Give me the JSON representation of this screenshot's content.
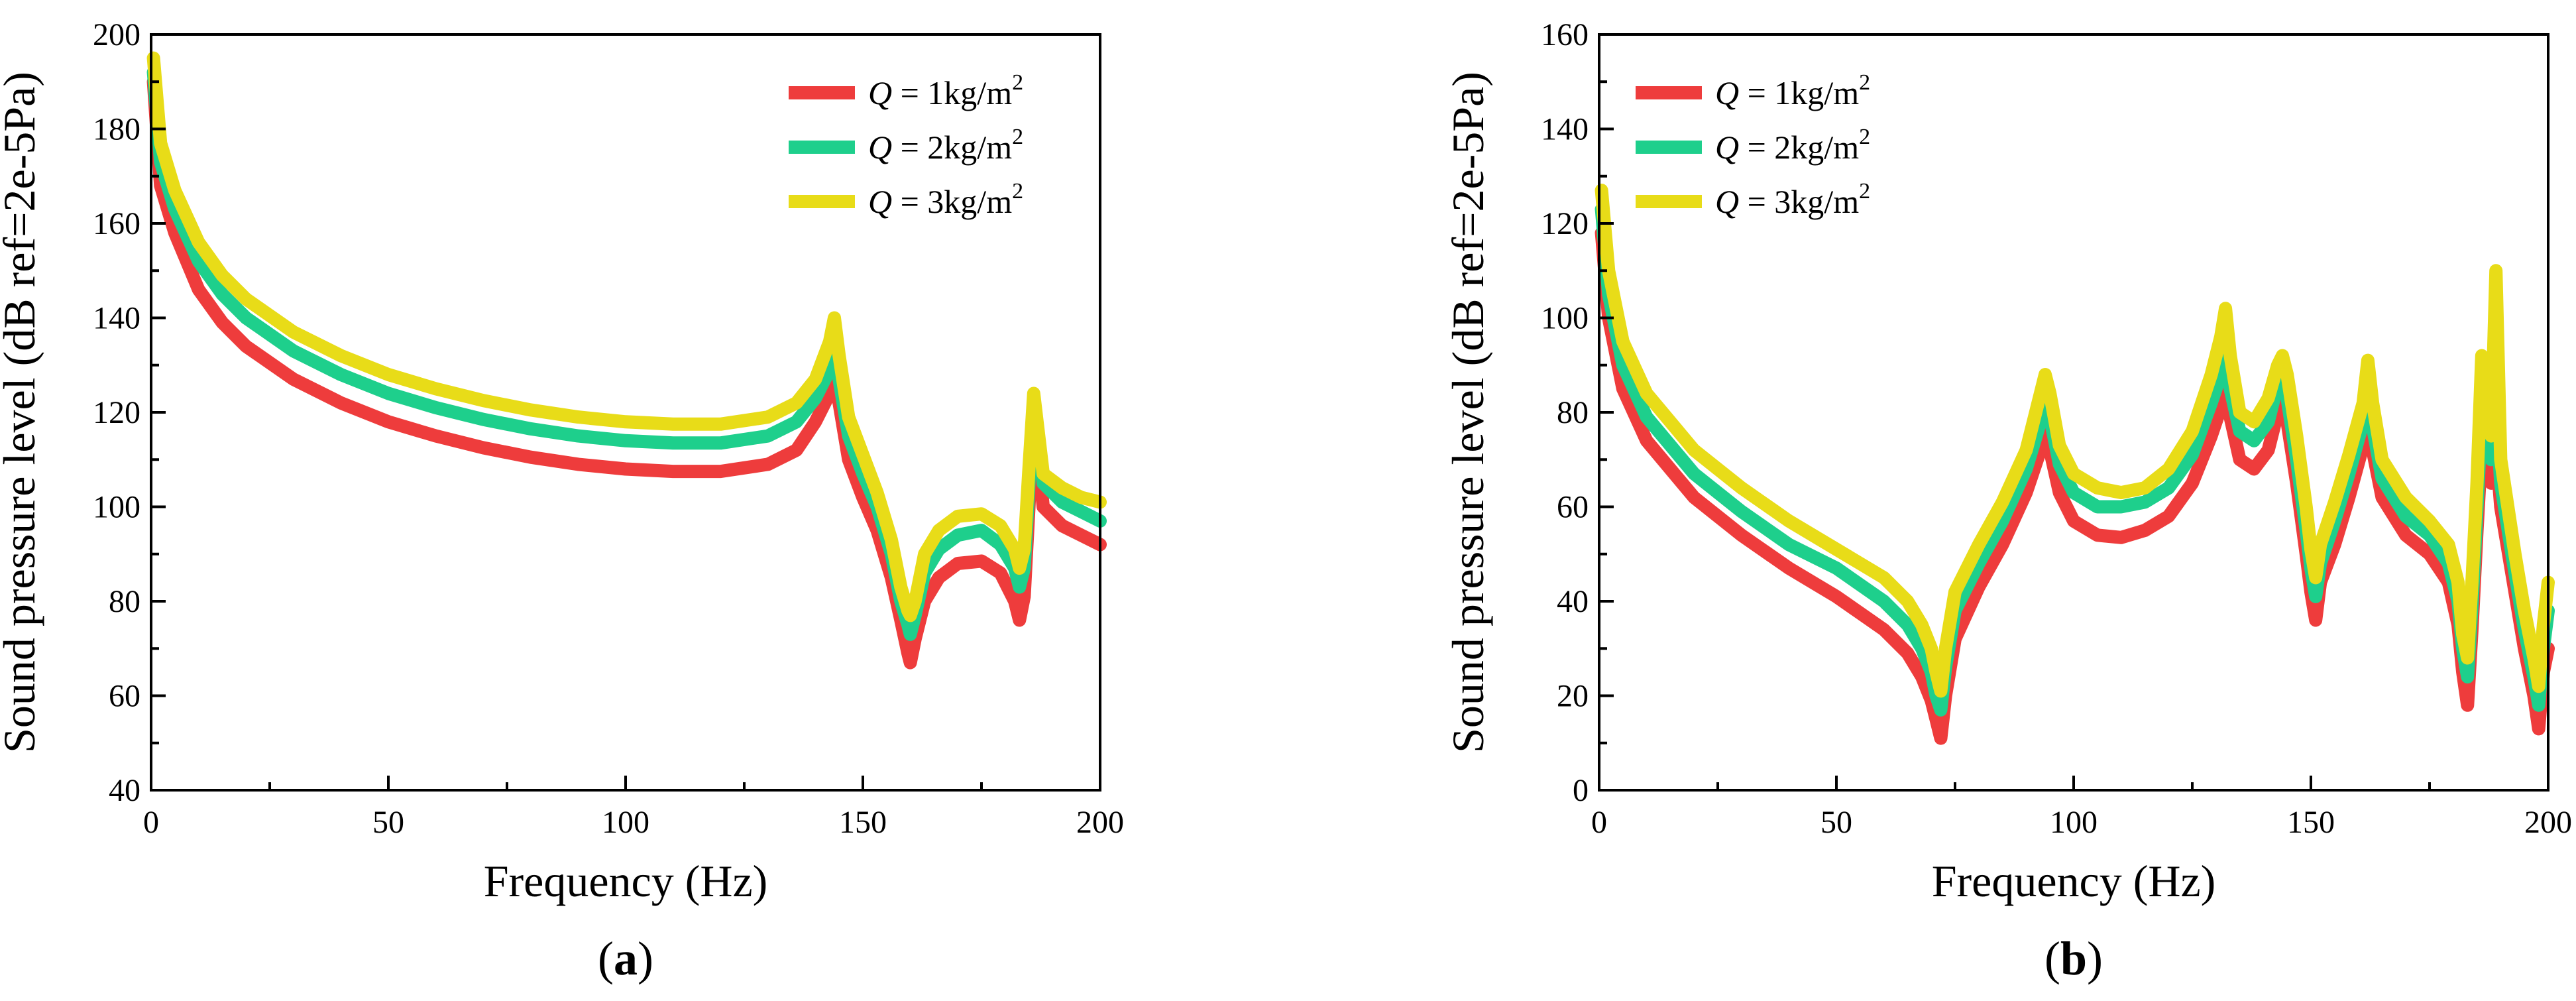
{
  "chart_data": [
    {
      "type": "line",
      "panel_label": "(a)",
      "panel_letter": "a",
      "xlabel": "Frequency (Hz)",
      "ylabel": "Sound pressure level (dB ref=2e-5Pa)",
      "xlim": [
        0,
        200
      ],
      "ylim": [
        40,
        200
      ],
      "xticks": [
        0,
        50,
        100,
        150,
        200
      ],
      "yticks": [
        40,
        60,
        80,
        100,
        120,
        140,
        160,
        180,
        200
      ],
      "legend_position": "top-right",
      "series": [
        {
          "name": "Q = 1kg/m2",
          "var": "Q",
          "text": " = 1kg/m",
          "sup": "2",
          "color": "#ee3c3c",
          "x": [
            0.5,
            2,
            5,
            10,
            15,
            20,
            30,
            40,
            50,
            60,
            70,
            80,
            90,
            100,
            110,
            120,
            130,
            136,
            140,
            143,
            144,
            145,
            147,
            150,
            153,
            156,
            158,
            159.5,
            160,
            161,
            163,
            166,
            170,
            175,
            179,
            182,
            183,
            184,
            185,
            186,
            188,
            192,
            196,
            200
          ],
          "y": [
            190,
            168,
            158,
            146,
            139,
            134,
            127,
            122,
            118,
            115,
            112.5,
            110.5,
            109,
            108,
            107.5,
            107.5,
            109,
            112,
            118,
            124,
            127,
            122,
            110,
            102,
            95,
            85,
            76,
            69,
            67,
            72,
            80,
            85,
            88,
            88.5,
            86,
            80,
            76,
            81,
            100,
            120,
            100,
            96,
            94,
            92
          ]
        },
        {
          "name": "Q = 2kg/m2",
          "var": "Q",
          "text": " = 2kg/m",
          "sup": "2",
          "color": "#1ecf8c",
          "x": [
            0.5,
            2,
            5,
            10,
            15,
            20,
            30,
            40,
            50,
            60,
            70,
            80,
            90,
            100,
            110,
            120,
            130,
            136,
            140,
            143,
            144,
            145,
            147,
            150,
            153,
            156,
            158,
            159.5,
            160,
            161,
            163,
            166,
            170,
            175,
            179,
            182,
            183,
            184,
            185,
            186,
            188,
            192,
            196,
            200
          ],
          "y": [
            192,
            173,
            163,
            152,
            145,
            140,
            133,
            128,
            124,
            121,
            118.5,
            116.5,
            115,
            114,
            113.5,
            113.5,
            115,
            118,
            123,
            129,
            133,
            127,
            115,
            107,
            100,
            90,
            80,
            75,
            73,
            77,
            86,
            91,
            94,
            95,
            92,
            87,
            83,
            87,
            105,
            122,
            105,
            101,
            99,
            97
          ]
        },
        {
          "name": "Q = 3kg/m2",
          "var": "Q",
          "text": " = 3kg/m",
          "sup": "2",
          "color": "#e8dc18",
          "x": [
            0.5,
            2,
            5,
            10,
            15,
            20,
            30,
            40,
            50,
            60,
            70,
            80,
            90,
            100,
            110,
            120,
            130,
            136,
            140,
            143,
            144,
            145,
            147,
            150,
            153,
            156,
            158,
            159.5,
            160,
            161,
            163,
            166,
            170,
            175,
            179,
            182,
            183,
            184,
            185,
            186,
            188,
            192,
            196,
            200
          ],
          "y": [
            195,
            177,
            167,
            156,
            149,
            144,
            137,
            132,
            128,
            125,
            122.5,
            120.5,
            119,
            118,
            117.5,
            117.5,
            119,
            122,
            127,
            135,
            140,
            132,
            119,
            111,
            103,
            93,
            83,
            78,
            77,
            80,
            90,
            95,
            98,
            98.5,
            96,
            91,
            87,
            91,
            108,
            124,
            107,
            104,
            102,
            101
          ]
        }
      ]
    },
    {
      "type": "line",
      "panel_label": "(b)",
      "panel_letter": "b",
      "xlabel": "Frequency (Hz)",
      "ylabel": "Sound pressure level (dB ref=2e-5Pa)",
      "xlim": [
        0,
        200
      ],
      "ylim": [
        0,
        160
      ],
      "xticks": [
        0,
        50,
        100,
        150,
        200
      ],
      "yticks": [
        0,
        20,
        40,
        60,
        80,
        100,
        120,
        140,
        160
      ],
      "legend_position": "top-left",
      "series": [
        {
          "name": "Q = 1kg/m2",
          "var": "Q",
          "text": " = 1kg/m",
          "sup": "2",
          "color": "#ee3c3c",
          "x": [
            0.5,
            2,
            5,
            10,
            20,
            30,
            40,
            50,
            60,
            65,
            68,
            70,
            71,
            72,
            73,
            75,
            80,
            85,
            90,
            93,
            94,
            95,
            97,
            100,
            105,
            110,
            115,
            120,
            125,
            129,
            131,
            132,
            133,
            135,
            138,
            141,
            143,
            144,
            145,
            147,
            149,
            150,
            151,
            152,
            155,
            158,
            161,
            162,
            163,
            165,
            170,
            175,
            179,
            181,
            182,
            183,
            184,
            185,
            186,
            187,
            188,
            189,
            190,
            193,
            195,
            197,
            198,
            199,
            200
          ],
          "y": [
            118,
            100,
            85,
            74,
            62,
            54,
            47,
            41,
            34,
            29,
            24,
            19,
            15,
            11,
            20,
            32,
            43,
            52,
            63,
            72,
            76,
            72,
            63,
            57,
            54,
            53.5,
            55,
            58,
            65,
            75,
            81,
            84,
            79,
            70,
            68,
            72,
            80,
            83,
            78,
            65,
            50,
            42,
            36,
            44,
            52,
            62,
            73,
            77,
            72,
            62,
            54,
            50,
            44,
            35,
            25,
            18,
            35,
            55,
            73,
            77,
            65,
            73,
            60,
            42,
            30,
            20,
            13,
            25,
            30
          ]
        },
        {
          "name": "Q = 2kg/m2",
          "var": "Q",
          "text": " = 2kg/m",
          "sup": "2",
          "color": "#1ecf8c",
          "x": [
            0.5,
            2,
            5,
            10,
            20,
            30,
            40,
            50,
            60,
            65,
            68,
            70,
            71,
            72,
            73,
            75,
            80,
            85,
            90,
            93,
            94,
            95,
            97,
            100,
            105,
            110,
            115,
            120,
            125,
            129,
            131,
            132,
            133,
            135,
            138,
            141,
            143,
            144,
            145,
            147,
            149,
            150,
            151,
            152,
            155,
            158,
            161,
            162,
            163,
            165,
            170,
            175,
            179,
            181,
            182,
            183,
            184,
            185,
            186,
            187,
            188,
            189,
            190,
            193,
            195,
            197,
            198,
            199,
            200
          ],
          "y": [
            123,
            105,
            90,
            79,
            67,
            59,
            52,
            47,
            40,
            35,
            30,
            25,
            20,
            17,
            26,
            38,
            48,
            57,
            68,
            78,
            82,
            79,
            69,
            63,
            60,
            60,
            61,
            64,
            71,
            82,
            88,
            92,
            85,
            76,
            74,
            78,
            86,
            88,
            83,
            70,
            55,
            47,
            41,
            48,
            57,
            67,
            78,
            83,
            77,
            66,
            58,
            54,
            48,
            40,
            30,
            24,
            40,
            60,
            80,
            82,
            70,
            82,
            65,
            46,
            34,
            24,
            18,
            30,
            38
          ]
        },
        {
          "name": "Q = 3kg/m2",
          "var": "Q",
          "text": " = 3kg/m",
          "sup": "2",
          "color": "#e8dc18",
          "x": [
            0.5,
            2,
            5,
            10,
            20,
            30,
            40,
            50,
            60,
            65,
            68,
            70,
            71,
            72,
            73,
            75,
            80,
            85,
            90,
            93,
            94,
            95,
            97,
            100,
            105,
            110,
            115,
            120,
            125,
            129,
            131,
            132,
            133,
            135,
            138,
            141,
            143,
            144,
            145,
            147,
            149,
            150,
            151,
            152,
            155,
            158,
            161,
            162,
            163,
            165,
            170,
            175,
            179,
            181,
            182,
            183,
            184,
            185,
            186,
            187,
            188,
            189,
            190,
            193,
            195,
            197,
            198,
            199,
            200
          ],
          "y": [
            127,
            110,
            95,
            84,
            72,
            64,
            57,
            51,
            45,
            40,
            35,
            30,
            25,
            21,
            30,
            42,
            52,
            61,
            72,
            84,
            88,
            84,
            73,
            67,
            64,
            63,
            64,
            68,
            76,
            88,
            96,
            102,
            92,
            80,
            78,
            83,
            90,
            92,
            88,
            75,
            60,
            51,
            45,
            52,
            61,
            71,
            82,
            91,
            82,
            70,
            62,
            57,
            52,
            44,
            33,
            28,
            45,
            65,
            92,
            85,
            75,
            110,
            70,
            50,
            38,
            28,
            22,
            35,
            44
          ]
        }
      ]
    }
  ]
}
